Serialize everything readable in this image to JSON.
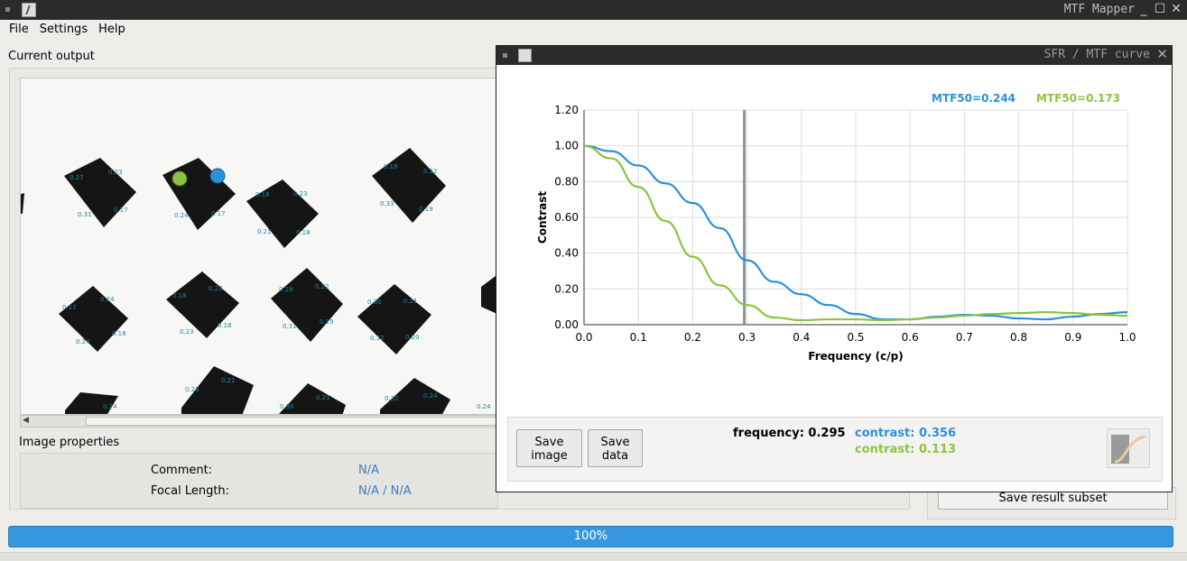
{
  "window": {
    "title": "MTF Mapper"
  },
  "menu": {
    "file": "File",
    "settings": "Settings",
    "help": "Help"
  },
  "output": {
    "label": "Current output"
  },
  "image_properties": {
    "label": "Image properties",
    "comment_key": "Comment:",
    "comment_val": "N/A",
    "focal_key": "Focal Length:",
    "focal_val": "N/A / N/A"
  },
  "targets": [
    {
      "labels": [
        "0.27",
        "0.23",
        "0.31",
        "0.17"
      ]
    },
    {
      "labels": [
        "0.24",
        "0.17"
      ]
    },
    {
      "labels": [
        "0.18",
        "0.23",
        "0.21",
        "0.18"
      ]
    },
    {
      "labels": [
        "0.18",
        "0.22",
        "0.33",
        "0.19"
      ]
    },
    {
      "labels": [
        "0.17",
        "0.24",
        "0.24",
        "0.18"
      ]
    },
    {
      "labels": [
        "0.18",
        "0.23",
        "0.23",
        "0.18"
      ]
    },
    {
      "labels": [
        "0.19",
        "0.22",
        "0.31",
        "0.19"
      ]
    },
    {
      "labels": [
        "0.30",
        "0.21",
        "0.32",
        "0.20"
      ]
    },
    {
      "labels": [
        "0.24"
      ]
    },
    {
      "labels": [
        "0.28",
        "0.21"
      ]
    },
    {
      "labels": [
        "0.30",
        "0.21"
      ]
    },
    {
      "labels": [
        "0.32",
        "0.24"
      ]
    }
  ],
  "right": {
    "save_subset": "Save result subset"
  },
  "progress": {
    "text": "100%",
    "value": 1.0
  },
  "dialog": {
    "title": "SFR / MTF curve",
    "save_image": [
      "Save",
      "image"
    ],
    "save_data": [
      "Save",
      "data"
    ],
    "freq_readout": "frequency: 0.295",
    "contrast_blue": "contrast: 0.356",
    "contrast_green": "contrast: 0.113"
  },
  "chart_data": {
    "type": "line",
    "xlabel": "Frequency (c/p)",
    "ylabel": "Contrast",
    "xlim": [
      0.0,
      1.0
    ],
    "ylim": [
      0.0,
      1.2
    ],
    "xticks": [
      "0.0",
      "0.1",
      "0.2",
      "0.3",
      "0.4",
      "0.5",
      "0.6",
      "0.7",
      "0.8",
      "0.9",
      "1.0"
    ],
    "yticks": [
      "0.00",
      "0.20",
      "0.40",
      "0.60",
      "0.80",
      "1.00",
      "1.20"
    ],
    "grid": true,
    "legend_labels": [
      "MTF50=0.244",
      "MTF50=0.173"
    ],
    "cursor_x": 0.295,
    "x": [
      0.0,
      0.05,
      0.1,
      0.15,
      0.2,
      0.25,
      0.3,
      0.35,
      0.4,
      0.45,
      0.5,
      0.55,
      0.6,
      0.65,
      0.7,
      0.75,
      0.8,
      0.85,
      0.9,
      0.95,
      1.0
    ],
    "series": [
      {
        "color": "#2a92d8",
        "values": [
          1.0,
          0.97,
          0.89,
          0.79,
          0.68,
          0.54,
          0.36,
          0.24,
          0.17,
          0.11,
          0.06,
          0.03,
          0.03,
          0.045,
          0.055,
          0.05,
          0.035,
          0.03,
          0.045,
          0.06,
          0.07
        ]
      },
      {
        "color": "#8cc43f",
        "values": [
          1.0,
          0.93,
          0.77,
          0.58,
          0.38,
          0.22,
          0.11,
          0.04,
          0.025,
          0.03,
          0.03,
          0.025,
          0.03,
          0.04,
          0.05,
          0.06,
          0.065,
          0.07,
          0.065,
          0.055,
          0.05
        ]
      }
    ]
  }
}
